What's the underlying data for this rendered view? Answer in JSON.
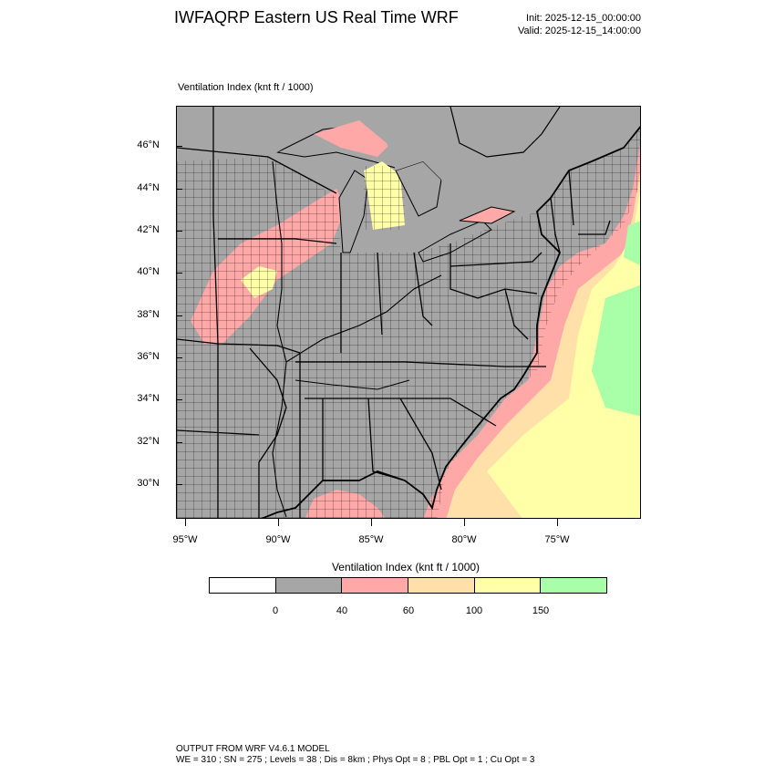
{
  "header": {
    "title": "IWFAQRP Eastern US Real Time WRF",
    "init": "Init: 2025-12-15_00:00:00",
    "valid": "Valid: 2025-12-15_14:00:00"
  },
  "plot": {
    "label": "Ventilation Index   (knt ft / 1000)",
    "lat_labels": [
      "46°N",
      "44°N",
      "42°N",
      "40°N",
      "38°N",
      "36°N",
      "34°N",
      "32°N",
      "30°N"
    ],
    "lon_labels": [
      "95°W",
      "90°W",
      "85°W",
      "80°W",
      "75°W"
    ]
  },
  "colorbar": {
    "title": "Ventilation Index  (knt ft / 1000)",
    "bins": [
      {
        "color": "#ffffff"
      },
      {
        "color": "#a6a6a6"
      },
      {
        "color": "#ffa8a8"
      },
      {
        "color": "#ffe0a8"
      },
      {
        "color": "#ffffa8"
      },
      {
        "color": "#a8ffa8"
      }
    ],
    "labels": [
      "0",
      "40",
      "60",
      "100",
      "150"
    ]
  },
  "footer": {
    "line1": "OUTPUT FROM WRF V4.6.1 MODEL",
    "line2": "WE = 310 ; SN = 275 ; Levels = 38 ; Dis = 8km ; Phys Opt = 8 ; PBL Opt = 1 ; Cu Opt = 3"
  }
}
